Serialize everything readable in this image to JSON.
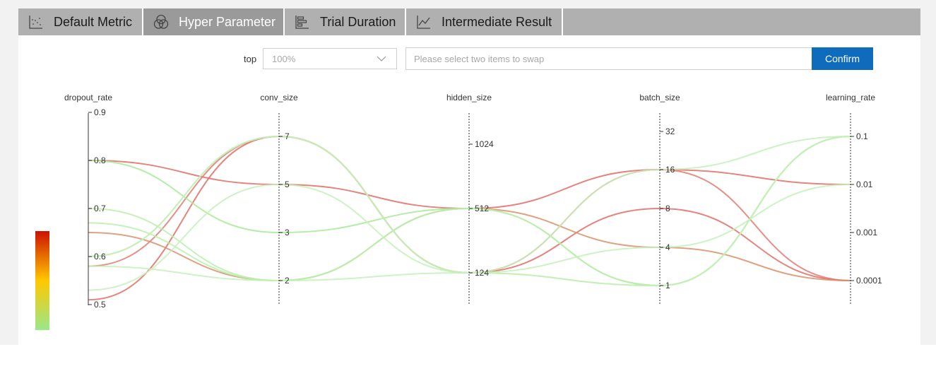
{
  "tabs": [
    {
      "label": "Default Metric",
      "icon": "scatter-chart-icon",
      "active": false
    },
    {
      "label": "Hyper Parameter",
      "icon": "venn-diagram-icon",
      "active": true
    },
    {
      "label": "Trial Duration",
      "icon": "bar-chart-icon",
      "active": false
    },
    {
      "label": "Intermediate Result",
      "icon": "line-chart-icon",
      "active": false
    }
  ],
  "controls": {
    "top_label": "top",
    "top_value": "100%",
    "swap_placeholder": "Please select two items to swap",
    "confirm_label": "Confirm"
  },
  "colors": {
    "tabbar": "#b0b0b0",
    "tab_active": "#9a9a9a",
    "confirm": "#0f6cbd",
    "low": "#99e88a",
    "high": "#cc1100"
  },
  "chart_data": {
    "type": "parallel_coordinates",
    "axes": [
      {
        "name": "dropout_rate",
        "scale": "linear",
        "ticks": [
          "0.5",
          "0.6",
          "0.7",
          "0.8",
          "0.9"
        ]
      },
      {
        "name": "conv_size",
        "scale": "categorical",
        "ticks": [
          "2",
          "3",
          "5",
          "7"
        ]
      },
      {
        "name": "hidden_size",
        "scale": "categorical",
        "ticks": [
          "124",
          "512",
          "1024"
        ]
      },
      {
        "name": "batch_size",
        "scale": "categorical",
        "ticks": [
          "1",
          "4",
          "8",
          "16",
          "32"
        ]
      },
      {
        "name": "learning_rate",
        "scale": "log",
        "ticks": [
          "0.0001",
          "0.001",
          "0.01",
          "0.1"
        ]
      }
    ],
    "color_scale": {
      "from": "#99e88a",
      "mid": "#ffc800",
      "to": "#cc1100"
    },
    "lines": [
      {
        "values": [
          0.8,
          "5",
          "512",
          "16",
          "0.01"
        ],
        "color": "#e06e68"
      },
      {
        "values": [
          0.58,
          "7",
          "124",
          "16",
          "0.0001"
        ],
        "color": "#e27a72"
      },
      {
        "values": [
          0.51,
          "7",
          "124",
          "8",
          "0.0001"
        ],
        "color": "#e06e68"
      },
      {
        "values": [
          0.65,
          "2",
          "512",
          "4",
          "0.0001"
        ],
        "color": "#d8926c"
      },
      {
        "values": [
          0.8,
          "3",
          "512",
          "1",
          "0.1"
        ],
        "color": "#a6ea96"
      },
      {
        "values": [
          0.7,
          "2",
          "512",
          "1",
          "0.1"
        ],
        "color": "#b8eeaa"
      },
      {
        "values": [
          0.67,
          "2",
          "512",
          "1",
          "0.1"
        ],
        "color": "#b8eeaa"
      },
      {
        "values": [
          0.6,
          "7",
          "124",
          "1",
          "0.1"
        ],
        "color": "#b8eeaa"
      },
      {
        "values": [
          0.53,
          "5",
          "124",
          "1",
          "0.1"
        ],
        "color": "#c4f0b8"
      },
      {
        "values": [
          0.6,
          "7",
          "124",
          "4",
          "0.01"
        ],
        "color": "#c4f0b8"
      },
      {
        "values": [
          0.58,
          "2",
          "124",
          "16",
          "0.1"
        ],
        "color": "#c4f0b8"
      }
    ]
  }
}
